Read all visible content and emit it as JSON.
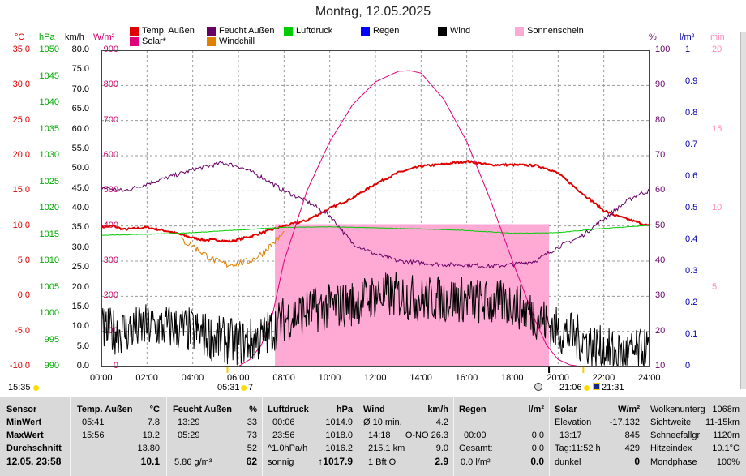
{
  "title": "Montag, 12.05.2025",
  "colors": {
    "temp": "#e00000",
    "feucht": "#660066",
    "luftdruck": "#00cc00",
    "regen": "#0000ff",
    "wind": "#000000",
    "sonnenschein": "#ffaad4",
    "solar": "#e0007a",
    "windchill": "#e08000",
    "grid": "#999999"
  },
  "legend": {
    "temp": "Temp. Außen",
    "feucht": "Feucht Außen",
    "luftdruck": "Luftdruck",
    "regen": "Regen",
    "wind": "Wind",
    "sonnenschein": "Sonnenschein",
    "solar": "Solar*",
    "windchill": "Windchill"
  },
  "axis_heads": {
    "temp": "°C",
    "hpa": "hPa",
    "kmh": "km/h",
    "wm2": "W/m²",
    "pct": "%",
    "lm2": "l/m²",
    "min": "min"
  },
  "chart_data": {
    "type": "line",
    "x_ticks": [
      "00:00",
      "02:00",
      "04:00",
      "06:00",
      "08:00",
      "10:00",
      "12:00",
      "14:00",
      "16:00",
      "18:00",
      "20:00",
      "22:00",
      "24:00"
    ],
    "axes": {
      "temp_c": {
        "ticks": [
          "35.0",
          "30.0",
          "25.0",
          "20.0",
          "15.0",
          "10.0",
          "5.0",
          "0.0",
          "-5.0",
          "-10.0"
        ],
        "range": [
          -10,
          35
        ]
      },
      "pressure_hpa": {
        "ticks": [
          "1050",
          "1045",
          "1040",
          "1035",
          "1030",
          "1025",
          "1020",
          "1015",
          "1010",
          "1005",
          "1000",
          "995",
          "990"
        ],
        "range": [
          990,
          1050
        ]
      },
      "wind_kmh": {
        "ticks": [
          "80.0",
          "75.0",
          "70.0",
          "65.0",
          "60.0",
          "55.0",
          "50.0",
          "45.0",
          "40.0",
          "35.0",
          "30.0",
          "25.0",
          "20.0",
          "15.0",
          "10.0",
          "5.0",
          "0.0"
        ],
        "range": [
          0,
          80
        ]
      },
      "solar_wm2": {
        "ticks": [
          "900",
          "800",
          "700",
          "600",
          "500",
          "400",
          "300",
          "200",
          "100",
          "0"
        ],
        "range": [
          0,
          900
        ]
      },
      "humidity_pct": {
        "ticks": [
          "100",
          "90",
          "80",
          "70",
          "60",
          "50",
          "40",
          "30",
          "20",
          "10"
        ],
        "range": [
          10,
          100
        ]
      },
      "rain_lm2": {
        "ticks": [
          "1",
          "0.9",
          "0.8",
          "0.7",
          "0.6",
          "0.5",
          "0.4",
          "0.3",
          "0.2",
          "0.1",
          "0"
        ],
        "range": [
          0,
          1
        ]
      },
      "sunshine_min": {
        "ticks": [
          "20",
          "15",
          "10",
          "5"
        ],
        "range": [
          0,
          20
        ]
      }
    },
    "series": [
      {
        "name": "Temp. Außen",
        "axis": "temp_c",
        "x_hours": [
          0,
          0.5,
          1,
          2,
          3,
          4,
          4.5,
          5,
          5.7,
          6,
          6.5,
          7,
          8,
          9,
          10,
          11,
          12,
          13,
          14,
          15,
          16,
          17,
          18,
          19,
          19.5,
          20,
          21,
          22,
          22.5,
          23,
          23.5,
          24
        ],
        "values": [
          9.8,
          10.0,
          9.5,
          9.8,
          9.2,
          8.3,
          8.0,
          8.0,
          7.8,
          8.1,
          8.5,
          9.0,
          10.0,
          10.8,
          12.5,
          14.0,
          16.0,
          17.6,
          18.5,
          18.8,
          19.2,
          18.7,
          18.7,
          18.6,
          18.2,
          17.5,
          14.8,
          12.2,
          11.5,
          11.0,
          10.5,
          10.0
        ]
      },
      {
        "name": "Feucht Außen",
        "axis": "humidity_pct",
        "x_hours": [
          0,
          1,
          2,
          3,
          4,
          5,
          5.3,
          6,
          7,
          8,
          9,
          10,
          11,
          12,
          13,
          14,
          15,
          16,
          17,
          18,
          19,
          20,
          21,
          22,
          23,
          23.5,
          24
        ],
        "values": [
          61,
          60,
          62,
          64,
          66,
          67.5,
          68,
          67,
          64,
          60,
          57,
          53,
          45,
          42,
          40,
          39.5,
          39,
          39,
          38.5,
          39,
          40,
          44,
          47,
          52,
          57,
          59,
          60
        ]
      },
      {
        "name": "Luftdruck",
        "axis": "pressure_hpa",
        "x_hours": [
          0,
          2,
          4,
          6,
          8,
          10,
          12,
          14,
          16,
          18,
          20,
          22,
          24
        ],
        "values": [
          1014.9,
          1015.1,
          1015.4,
          1015.9,
          1016.4,
          1016.5,
          1016.3,
          1016.1,
          1015.8,
          1015.3,
          1015.4,
          1016.2,
          1016.8
        ]
      },
      {
        "name": "Windchill",
        "axis": "temp_c",
        "x_hours": [
          3.5,
          4,
          4.5,
          5,
          5.5,
          6,
          6.5,
          7,
          7.5,
          8
        ],
        "values": [
          8.0,
          7.2,
          6.0,
          5.0,
          4.5,
          4.7,
          5.0,
          6.0,
          7.5,
          9.0
        ]
      },
      {
        "name": "Solar*",
        "axis": "solar_wm2",
        "x_hours": [
          6,
          6.5,
          7,
          7.5,
          8,
          9,
          10,
          11,
          12,
          13,
          13.5,
          14,
          15,
          16,
          17,
          18,
          19,
          19.5,
          20,
          20.5,
          21
        ],
        "values": [
          0,
          20,
          60,
          150,
          300,
          500,
          640,
          745,
          810,
          840,
          842,
          835,
          760,
          640,
          480,
          300,
          130,
          60,
          20,
          5,
          0
        ]
      },
      {
        "name": "Wind",
        "axis": "wind_kmh",
        "x_hours": [
          0,
          1,
          2,
          3,
          4,
          5,
          6,
          7,
          8,
          9,
          10,
          11,
          12,
          13,
          14,
          15,
          16,
          17,
          18,
          19,
          20,
          21,
          22,
          23,
          24
        ],
        "values": [
          9,
          9,
          10,
          10,
          9,
          7,
          6,
          7,
          12,
          14,
          15,
          16,
          18,
          18,
          17,
          17,
          17,
          16,
          16,
          13,
          9,
          7,
          4,
          3,
          4
        ]
      }
    ],
    "sunshine_blocks": [
      {
        "from_hours": 7.6,
        "to_hours": 19.6,
        "value_min": 9
      }
    ],
    "bottom_labels": {
      "left": "15:35",
      "sunrise": "05:31",
      "sunrise_suffix": "7",
      "sunset": "21:06",
      "sunset2": "21:31"
    }
  },
  "table": {
    "sensor": {
      "head": "Sensor",
      "min": "MinWert",
      "max": "MaxWert",
      "avg": "Durchschnitt",
      "date": "12.05. 23:58"
    },
    "temp": {
      "head": "Temp. Außen",
      "unit": "°C",
      "min_t": "05:41",
      "min_v": "7.8",
      "max_t": "15:56",
      "max_v": "19.2",
      "avg": "13.80",
      "cur": "10.1"
    },
    "feucht": {
      "head": "Feucht Außen",
      "unit": "%",
      "min_t": "13:29",
      "min_v": "33",
      "max_t": "05:29",
      "max_v": "73",
      "avg": "52",
      "extra": "5.86 g/m³",
      "cur": "62"
    },
    "druck": {
      "head": "Luftdruck",
      "unit": "hPa",
      "min_t": "00:06",
      "min_v": "1014.9",
      "max_t": "23:56",
      "max_v": "1018.0",
      "trend_l": "^1.0hPa/h",
      "trend_v": "1016.2",
      "weather": "sonnig",
      "cur": "↑1017.9"
    },
    "wind": {
      "head": "Wind",
      "unit": "km/h",
      "r1_l": "Ø 10 min.",
      "r1_v": "4.2",
      "r2_t": "14:18",
      "r2_l": "O-NO 26.3",
      "r3_l": "215.1 km",
      "r3_v": "9.0",
      "r4_l": "1 Bft O",
      "cur": "2.9"
    },
    "regen": {
      "head": "Regen",
      "unit": "l/m²",
      "r2_t": "00:00",
      "r2_v": "0.0",
      "r3_l": "Gesamt:",
      "r3_v": "0.0",
      "r4_l": "0.0 l/m²",
      "cur": "0.0"
    },
    "solar": {
      "head": "Solar",
      "unit": "W/m²",
      "r1_l": "Elevation",
      "r1_v": "-17.132",
      "r2_t": "13:17",
      "r2_v": "845",
      "r3_l": "Tag:11:52 h",
      "r3_v": "429",
      "r4_l": "dunkel",
      "cur": "0"
    },
    "extra": {
      "r1_l": "Wolkenunterg",
      "r1_v": "1068m",
      "r2_l": "Sichtweite",
      "r2_v": "11-15km",
      "r3_l": "Schneefallgr",
      "r3_v": "1120m",
      "r4_l": "Hitzeindex",
      "r4_v": "10.1°C",
      "r5_l": "Mondphase",
      "r5_v": "100%"
    }
  }
}
